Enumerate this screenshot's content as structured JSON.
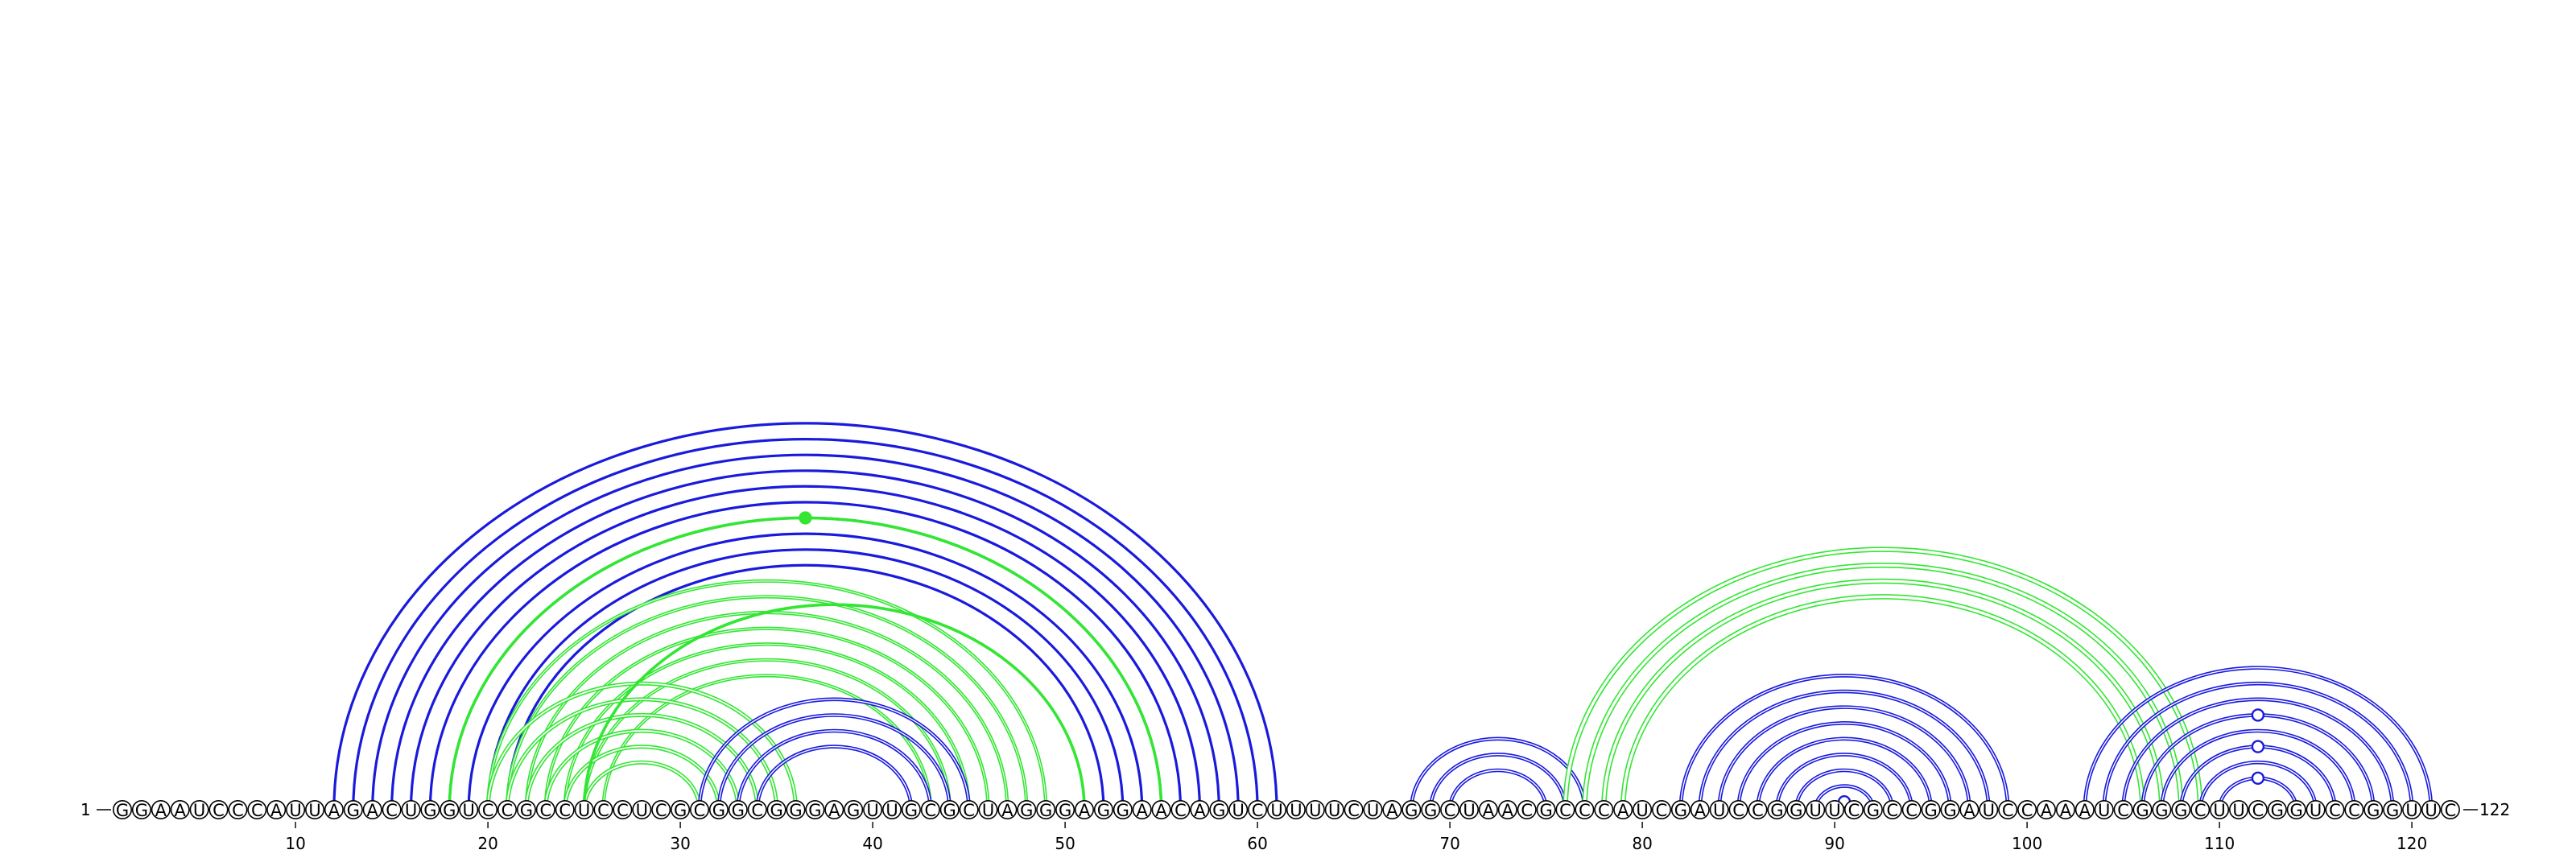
{
  "sequence": "GGAAUCCCAUUAGACUGGUCCGCCUCCUCGCGGCGGGAGUUGCGCUAGGGAGGAACAGUCUUUUCUAGGCUAACGCCCAUCGAUCCGGUUCGCCGGAUCCAAAUCGGGCUUCGGUCCGGUUC",
  "start_label": "1",
  "end_label": "122",
  "ticks": [
    10,
    20,
    30,
    40,
    50,
    60,
    70,
    80,
    90,
    100,
    110,
    120
  ],
  "colors": {
    "blue": "#1a1adc",
    "green": "#33e633"
  },
  "arc_groups": [
    {
      "color": "blue",
      "stroke": 3.2,
      "pairs": [
        [
          12,
          61
        ],
        [
          13,
          60
        ],
        [
          14,
          59
        ],
        [
          15,
          58
        ],
        [
          16,
          57
        ],
        [
          17,
          56
        ],
        [
          18,
          55
        ],
        [
          19,
          54
        ],
        [
          20,
          53
        ],
        [
          21,
          52
        ]
      ]
    },
    {
      "color": "green",
      "stroke": 3.6,
      "pairs": [
        [
          18,
          55
        ]
      ]
    },
    {
      "color": "green",
      "stroke": 4.2,
      "pairs": [
        [
          20,
          49
        ],
        [
          21,
          48
        ],
        [
          22,
          47
        ],
        [
          23,
          46
        ],
        [
          24,
          45
        ],
        [
          25,
          44
        ],
        [
          26,
          43
        ]
      ]
    },
    {
      "color": "green",
      "stroke": 5.0,
      "pairs": [
        [
          20,
          36
        ],
        [
          21,
          35
        ],
        [
          22,
          34
        ],
        [
          23,
          33
        ],
        [
          24,
          32
        ],
        [
          25,
          31
        ]
      ]
    },
    {
      "color": "green",
      "stroke": 3.6,
      "pairs": [
        [
          25,
          51
        ]
      ]
    },
    {
      "color": "blue",
      "stroke": 4.6,
      "pairs": [
        [
          31,
          45
        ],
        [
          32,
          44
        ],
        [
          33,
          43
        ],
        [
          34,
          42
        ]
      ]
    },
    {
      "color": "blue",
      "stroke": 4.6,
      "pairs": [
        [
          68,
          77
        ],
        [
          69,
          76
        ],
        [
          70,
          75
        ]
      ]
    },
    {
      "color": "green",
      "stroke": 6.5,
      "pairs": [
        [
          76,
          109
        ],
        [
          77,
          108
        ],
        [
          78,
          107
        ],
        [
          79,
          106
        ]
      ]
    },
    {
      "color": "blue",
      "stroke": 4.6,
      "pairs": [
        [
          82,
          99
        ],
        [
          83,
          98
        ],
        [
          84,
          97
        ],
        [
          85,
          96
        ],
        [
          86,
          95
        ],
        [
          87,
          94
        ],
        [
          88,
          93
        ],
        [
          89,
          92
        ]
      ]
    },
    {
      "color": "blue",
      "stroke": 4.6,
      "pairs": [
        [
          103,
          121
        ],
        [
          104,
          120
        ],
        [
          105,
          119
        ],
        [
          106,
          118
        ],
        [
          107,
          117
        ],
        [
          108,
          116
        ],
        [
          109,
          115
        ],
        [
          110,
          114
        ]
      ]
    }
  ],
  "markers": [
    {
      "color": "green",
      "filled": true,
      "pair": [
        18,
        55
      ]
    },
    {
      "color": "blue",
      "filled": false,
      "pair": [
        90,
        91
      ]
    },
    {
      "color": "blue",
      "filled": false,
      "pair": [
        110,
        114
      ]
    },
    {
      "color": "blue",
      "filled": false,
      "pair": [
        108,
        116
      ]
    },
    {
      "color": "blue",
      "filled": false,
      "pair": [
        106,
        118
      ]
    }
  ]
}
